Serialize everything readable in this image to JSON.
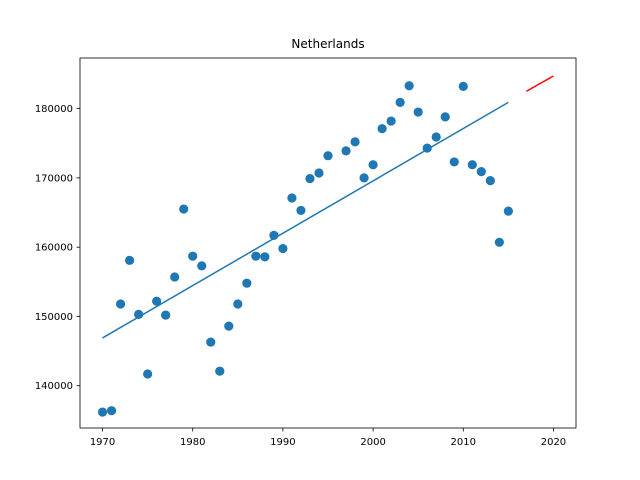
{
  "chart_data": {
    "type": "scatter",
    "title": "Netherlands",
    "xlabel": "",
    "ylabel": "",
    "xlim": [
      1967.5,
      2022.5
    ],
    "ylim": [
      133900,
      187300
    ],
    "xticks": [
      1970,
      1980,
      1990,
      2000,
      2010,
      2020
    ],
    "yticks": [
      140000,
      150000,
      160000,
      170000,
      180000
    ],
    "grid": false,
    "legend": "none",
    "colors": {
      "points": "#1f77b4",
      "fit": "#1f77b4",
      "forecast": "#ff0000"
    },
    "series": [
      {
        "kind": "scatter",
        "x": [
          1970,
          1971,
          1972,
          1973,
          1974,
          1975,
          1976,
          1977,
          1978,
          1979,
          1980,
          1981,
          1982,
          1983,
          1984,
          1985,
          1986,
          1987,
          1988,
          1989,
          1990,
          1991,
          1992,
          1993,
          1994,
          1995,
          1997,
          1998,
          1999,
          2000,
          2001,
          2002,
          2003,
          2004,
          2005,
          2006,
          2007,
          2008,
          2009,
          2010,
          2011,
          2012,
          2013,
          2014,
          2015
        ],
        "y": [
          136200,
          136400,
          151800,
          158100,
          150300,
          141700,
          152200,
          150200,
          155700,
          165500,
          158700,
          157300,
          146300,
          142100,
          148600,
          151800,
          154800,
          158700,
          158600,
          161700,
          159800,
          167100,
          165300,
          169900,
          170700,
          173200,
          173900,
          175200,
          170000,
          171900,
          177100,
          178200,
          180900,
          183300,
          179500,
          174300,
          175900,
          178800,
          172300,
          183200,
          171900,
          170900,
          169600,
          160700,
          165200
        ]
      },
      {
        "kind": "line",
        "x": [
          1970,
          2015
        ],
        "y": [
          146900,
          180900
        ]
      },
      {
        "kind": "line",
        "x": [
          2017,
          2020
        ],
        "y": [
          182500,
          184700
        ]
      }
    ]
  }
}
